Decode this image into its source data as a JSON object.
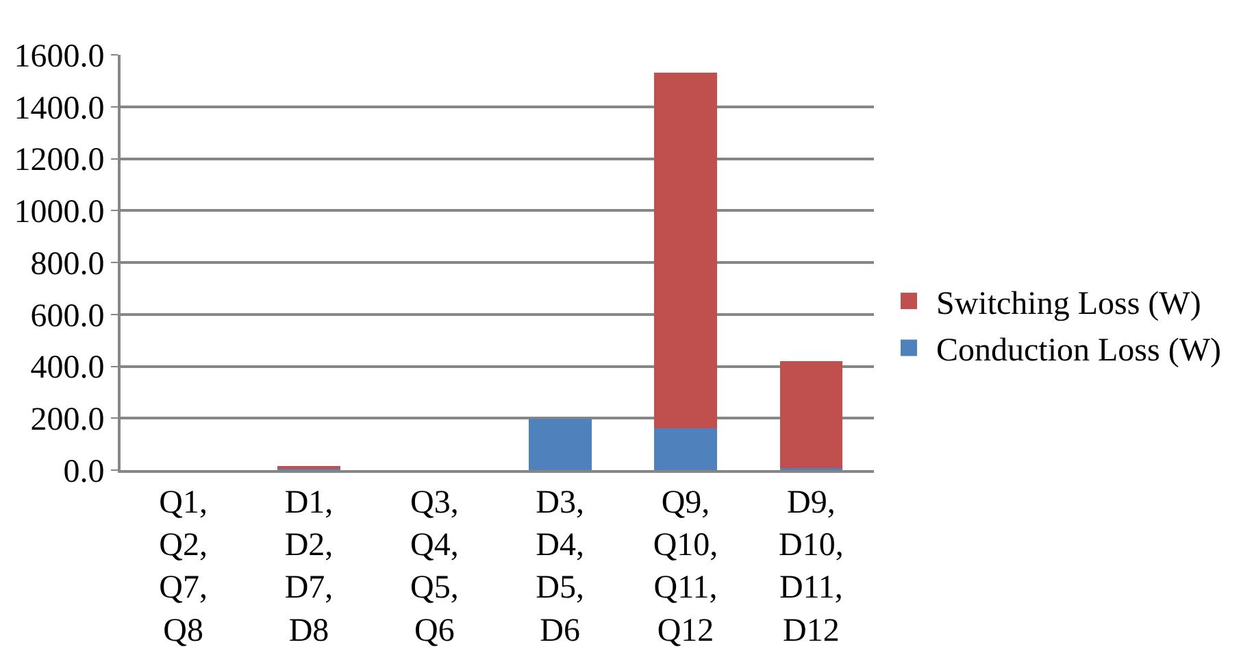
{
  "chart_data": {
    "type": "bar",
    "stacked": true,
    "categories": [
      "Q1,\nQ2,\nQ7,\nQ8",
      "D1,\nD2,\nD7,\nD8",
      "Q3,\nQ4,\nQ5,\nQ6",
      "D3,\nD4,\nD5,\nD6",
      "Q9,\nQ10,\nQ11,\nQ12",
      "D9,\nD10,\nD11,\nD12"
    ],
    "series": [
      {
        "name": "Conduction Loss (W)",
        "color": "#4f81bd",
        "values": [
          0,
          10,
          0,
          197,
          160,
          8
        ]
      },
      {
        "name": "Switching Loss (W)",
        "color": "#c0504d",
        "values": [
          0,
          5,
          0,
          0,
          1372,
          411
        ]
      }
    ],
    "ylim": [
      0,
      1600
    ],
    "yticks": [
      {
        "value": 0,
        "label": "0.0"
      },
      {
        "value": 200,
        "label": "200.0"
      },
      {
        "value": 400,
        "label": "400.0"
      },
      {
        "value": 600,
        "label": "600.0"
      },
      {
        "value": 800,
        "label": "800.0"
      },
      {
        "value": 1000,
        "label": "1000.0"
      },
      {
        "value": 1200,
        "label": "1200.0"
      },
      {
        "value": 1400,
        "label": "1400.0"
      },
      {
        "value": 1600,
        "label": "1600.0"
      }
    ],
    "grid": "y",
    "legend": "right"
  }
}
